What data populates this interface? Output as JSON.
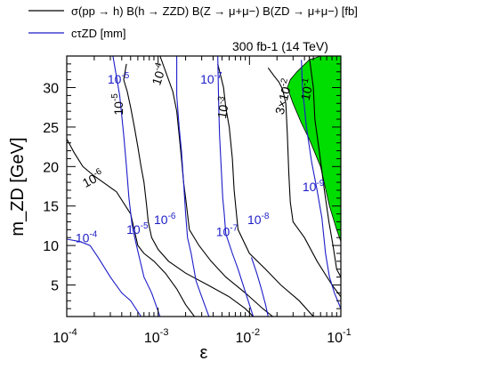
{
  "chart_data": {
    "type": "line",
    "title": "",
    "annotation": "300 fb-1 (14 TeV)",
    "xlabel": "ε",
    "ylabel": "m_ZD [GeV]",
    "xscale": "log",
    "xlim": [
      0.0001,
      0.1
    ],
    "ylim": [
      1,
      34
    ],
    "grid": false,
    "legend_placement": "top-left",
    "colors": {
      "black_contours": "#000000",
      "blue_contours": "#1c1cc8",
      "excluded_region": "#00dd00"
    },
    "legend": [
      {
        "name": "σ(pp → h) B(h → ZZD) B(Z → μ+μ−) B(ZD → μ+μ−) [fb]",
        "color": "#000000"
      },
      {
        "name": "cτZD [mm]",
        "color": "#1c1cc8"
      }
    ],
    "x_ticks": [
      {
        "value": 0.0001,
        "label": "10",
        "exp": "-4"
      },
      {
        "value": 0.001,
        "label": "10",
        "exp": "-3"
      },
      {
        "value": 0.01,
        "label": "10",
        "exp": "-2"
      },
      {
        "value": 0.1,
        "label": "10",
        "exp": "-1"
      }
    ],
    "y_ticks": [
      5,
      10,
      15,
      20,
      25,
      30
    ],
    "series": [
      {
        "name": "σB = 10^-6 fb",
        "color": "#000000",
        "points": [
          [
            0.0001,
            23.5
          ],
          [
            0.00012,
            21.8
          ],
          [
            0.00015,
            20.0
          ],
          [
            0.0002,
            18.8
          ],
          [
            0.00028,
            17.6
          ],
          [
            0.00035,
            16.8
          ],
          [
            0.0005,
            14.0
          ],
          [
            0.0006,
            10.0
          ],
          [
            0.0007,
            9.0
          ],
          [
            0.0009,
            8.0
          ],
          [
            0.0012,
            6.5
          ],
          [
            0.0016,
            4.5
          ],
          [
            0.002,
            2.5
          ],
          [
            0.0025,
            1.0
          ]
        ]
      },
      {
        "name": "σB = 10^-5 fb",
        "color": "#000000",
        "points": [
          [
            0.00045,
            33.0
          ],
          [
            0.00042,
            31.0
          ],
          [
            0.00046,
            29.5
          ],
          [
            0.0005,
            27.5
          ],
          [
            0.00055,
            25.0
          ],
          [
            0.0006,
            22.5
          ],
          [
            0.00065,
            20.0
          ],
          [
            0.0007,
            18.0
          ],
          [
            0.00075,
            15.0
          ],
          [
            0.00078,
            13.0
          ],
          [
            0.00085,
            11.0
          ],
          [
            0.001,
            9.5
          ],
          [
            0.0013,
            8.0
          ],
          [
            0.002,
            6.5
          ],
          [
            0.0035,
            5.0
          ],
          [
            0.006,
            3.5
          ],
          [
            0.009,
            2.0
          ],
          [
            0.011,
            1.0
          ]
        ]
      },
      {
        "name": "σB = 10^-4 fb",
        "color": "#000000",
        "points": [
          [
            0.00105,
            34.0
          ],
          [
            0.00145,
            29.5
          ],
          [
            0.0016,
            27.0
          ],
          [
            0.0017,
            24.0
          ],
          [
            0.0018,
            21.0
          ],
          [
            0.0019,
            18.0
          ],
          [
            0.002,
            16.0
          ],
          [
            0.0021,
            14.0
          ],
          [
            0.0022,
            12.0
          ],
          [
            0.0028,
            10.0
          ],
          [
            0.0038,
            8.0
          ],
          [
            0.0055,
            6.0
          ],
          [
            0.009,
            4.0
          ],
          [
            0.014,
            2.0
          ],
          [
            0.018,
            1.0
          ]
        ]
      },
      {
        "name": "σB = 10^-3 fb",
        "color": "#000000",
        "points": [
          [
            0.0045,
            33.0
          ],
          [
            0.0052,
            30.0
          ],
          [
            0.0055,
            27.5
          ],
          [
            0.006,
            25.0
          ],
          [
            0.0065,
            21.0
          ],
          [
            0.0068,
            17.0
          ],
          [
            0.0072,
            14.0
          ],
          [
            0.0075,
            12.0
          ],
          [
            0.01,
            9.0
          ],
          [
            0.015,
            7.0
          ],
          [
            0.022,
            5.0
          ],
          [
            0.035,
            3.0
          ],
          [
            0.05,
            1.0
          ]
        ]
      },
      {
        "name": "σB = 3×10^-2 fb",
        "color": "#000000",
        "points": [
          [
            0.016,
            32.5
          ],
          [
            0.0185,
            31.5
          ],
          [
            0.021,
            30.7
          ],
          [
            0.023,
            29.8
          ],
          [
            0.025,
            28.0
          ],
          [
            0.026,
            24.0
          ],
          [
            0.027,
            19.0
          ],
          [
            0.028,
            15.5
          ],
          [
            0.03,
            13.0
          ],
          [
            0.04,
            11.0
          ],
          [
            0.055,
            8.0
          ],
          [
            0.08,
            5.0
          ],
          [
            0.1,
            3.5
          ]
        ]
      },
      {
        "name": "σB = 10^-1 fb",
        "color": "#000000",
        "points": [
          [
            0.045,
            34.0
          ],
          [
            0.05,
            30.0
          ],
          [
            0.052,
            26.0
          ],
          [
            0.058,
            22.0
          ],
          [
            0.066,
            17.0
          ],
          [
            0.074,
            13.0
          ],
          [
            0.082,
            10.0
          ],
          [
            0.09,
            7.0
          ],
          [
            0.1,
            6.0
          ]
        ]
      },
      {
        "name": "cτ = 10^-4 mm",
        "color": "#1c1cc8",
        "points": [
          [
            0.0001,
            10.8
          ],
          [
            0.00014,
            10.5
          ],
          [
            0.00018,
            10.0
          ],
          [
            0.00022,
            8.5
          ],
          [
            0.0003,
            6.0
          ],
          [
            0.0004,
            4.0
          ],
          [
            0.0005,
            3.0
          ],
          [
            0.00065,
            1.0
          ]
        ]
      },
      {
        "name": "cτ = 10^-5 mm",
        "color": "#1c1cc8",
        "points": [
          [
            0.00032,
            34.0
          ],
          [
            0.00038,
            29.0
          ],
          [
            0.00042,
            24.0
          ],
          [
            0.00045,
            20.0
          ],
          [
            0.00048,
            16.0
          ],
          [
            0.00052,
            12.5
          ],
          [
            0.00058,
            10.0
          ],
          [
            0.0007,
            6.0
          ],
          [
            0.00085,
            4.0
          ],
          [
            0.00105,
            1.0
          ]
        ]
      },
      {
        "name": "cτ = 10^-6 mm",
        "color": "#1c1cc8",
        "points": [
          [
            0.0016,
            34.0
          ],
          [
            0.0016,
            29.0
          ],
          [
            0.0017,
            25.0
          ],
          [
            0.0018,
            22.0
          ],
          [
            0.0019,
            18.0
          ],
          [
            0.002,
            14.0
          ],
          [
            0.0021,
            11.0
          ],
          [
            0.0023,
            9.0
          ],
          [
            0.0026,
            5.5
          ],
          [
            0.003,
            3.5
          ],
          [
            0.0036,
            1.0
          ]
        ]
      },
      {
        "name": "cτ = 10^-7 mm",
        "color": "#1c1cc8",
        "points": [
          [
            0.0045,
            34.0
          ],
          [
            0.0046,
            28.0
          ],
          [
            0.0047,
            24.0
          ],
          [
            0.0049,
            20.0
          ],
          [
            0.0051,
            16.0
          ],
          [
            0.0053,
            14.0
          ],
          [
            0.0055,
            11.5
          ],
          [
            0.0065,
            9.0
          ],
          [
            0.0075,
            7.0
          ],
          [
            0.0088,
            4.5
          ],
          [
            0.01,
            2.5
          ],
          [
            0.011,
            1.0
          ]
        ]
      },
      {
        "name": "cτ = 10^-8 mm",
        "color": "#1c1cc8",
        "points": [
          [
            0.0105,
            8.5
          ],
          [
            0.012,
            6.5
          ],
          [
            0.0135,
            4.5
          ],
          [
            0.015,
            2.5
          ],
          [
            0.016,
            1.0
          ]
        ]
      },
      {
        "name": "cτ = 10^-9 mm",
        "color": "#1c1cc8",
        "points": [
          [
            0.037,
            33.5
          ],
          [
            0.038,
            30.0
          ],
          [
            0.042,
            25.0
          ],
          [
            0.048,
            20.5
          ],
          [
            0.055,
            17.0
          ],
          [
            0.062,
            13.5
          ],
          [
            0.068,
            9.0
          ],
          [
            0.075,
            6.0
          ],
          [
            0.085,
            4.0
          ],
          [
            0.1,
            2.0
          ]
        ]
      }
    ],
    "excluded_region": {
      "label": "",
      "points": [
        [
          0.1,
          34.0
        ],
        [
          0.1,
          10.5
        ],
        [
          0.09,
          12.0
        ],
        [
          0.075,
          15.0
        ],
        [
          0.06,
          20.0
        ],
        [
          0.045,
          23.5
        ],
        [
          0.037,
          25.5
        ],
        [
          0.03,
          28.0
        ],
        [
          0.026,
          30.0
        ],
        [
          0.028,
          31.0
        ],
        [
          0.033,
          32.0
        ],
        [
          0.045,
          33.5
        ],
        [
          0.06,
          34.0
        ]
      ]
    },
    "contour_labels": [
      {
        "text": "10",
        "exp": "-6",
        "x": 0.00016,
        "y": 17.3,
        "color": "black",
        "rotate": 28
      },
      {
        "text": "10",
        "exp": "-5",
        "x": 0.00041,
        "y": 26.5,
        "color": "black",
        "rotate": 90
      },
      {
        "text": "10",
        "exp": "-4",
        "x": 0.00105,
        "y": 30.2,
        "color": "black",
        "rotate": 72
      },
      {
        "text": "10",
        "exp": "-3",
        "x": 0.0055,
        "y": 26.0,
        "color": "black",
        "rotate": 80
      },
      {
        "text": "3×10",
        "exp": "-2",
        "x": 0.0235,
        "y": 26.5,
        "color": "black",
        "rotate": 75
      },
      {
        "text": "10",
        "exp": "-1",
        "x": 0.045,
        "y": 28.3,
        "color": "black",
        "rotate": 78
      },
      {
        "text": "10",
        "exp": "-5",
        "x": 0.00028,
        "y": 30.5,
        "color": "blue",
        "rotate": 0
      },
      {
        "text": "10",
        "exp": "-7",
        "x": 0.0029,
        "y": 30.5,
        "color": "blue",
        "rotate": 0
      },
      {
        "text": "10",
        "exp": "-4",
        "x": 0.000125,
        "y": 10.4,
        "color": "blue",
        "rotate": 0
      },
      {
        "text": "10",
        "exp": "-5",
        "x": 0.00045,
        "y": 11.5,
        "color": "blue",
        "rotate": 0
      },
      {
        "text": "10",
        "exp": "-6",
        "x": 0.0009,
        "y": 12.7,
        "color": "blue",
        "rotate": 0
      },
      {
        "text": "10",
        "exp": "-7",
        "x": 0.0043,
        "y": 11.2,
        "color": "blue",
        "rotate": 0
      },
      {
        "text": "10",
        "exp": "-8",
        "x": 0.0095,
        "y": 12.7,
        "color": "blue",
        "rotate": 0
      },
      {
        "text": "10",
        "exp": "-9",
        "x": 0.038,
        "y": 16.9,
        "color": "blue",
        "rotate": 0
      }
    ]
  }
}
